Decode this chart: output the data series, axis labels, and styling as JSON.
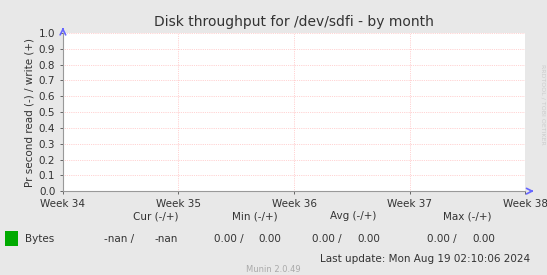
{
  "title": "Disk throughput for /dev/sdfi - by month",
  "ylabel": "Pr second read (-) / write (+)",
  "xlabel_ticks": [
    "Week 34",
    "Week 35",
    "Week 36",
    "Week 37",
    "Week 38"
  ],
  "ylim": [
    0.0,
    1.0
  ],
  "yticks": [
    0.0,
    0.1,
    0.2,
    0.3,
    0.4,
    0.5,
    0.6,
    0.7,
    0.8,
    0.9,
    1.0
  ],
  "grid_color": "#ffaaaa",
  "bg_color": "#e8e8e8",
  "plot_bg_color": "#ffffff",
  "axis_color": "#999999",
  "title_color": "#333333",
  "legend_label": "Bytes",
  "legend_color": "#00aa00",
  "cur_label": "Cur (-/+)",
  "min_label": "Min (-/+)",
  "avg_label": "Avg (-/+)",
  "max_label": "Max (-/+)",
  "cur_val_left": "-nan /",
  "cur_val_right": "-nan",
  "min_val_left": "0.00 /",
  "min_val_right": "0.00",
  "avg_val_left": "0.00 /",
  "avg_val_right": "0.00",
  "max_val_left": "0.00 /",
  "max_val_right": "0.00",
  "last_update": "Last update: Mon Aug 19 02:10:06 2024",
  "munin_version": "Munin 2.0.49",
  "rrdtool_label": "RRDTOOL / TOBI OETIKER",
  "arrow_color": "#6666ff",
  "tick_color": "#333333",
  "text_color": "#333333"
}
